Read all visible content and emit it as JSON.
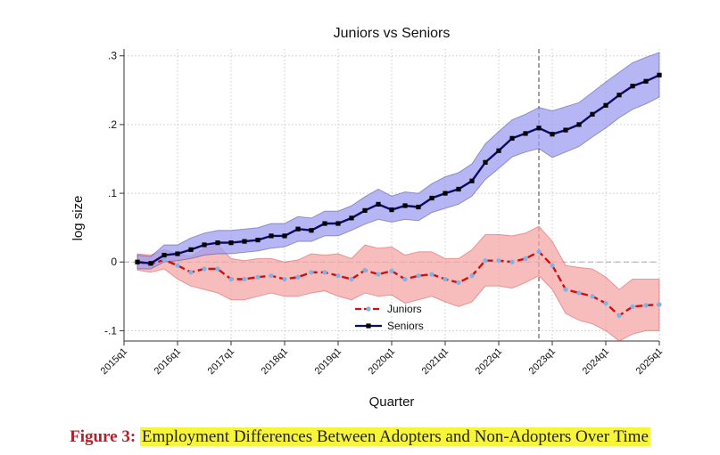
{
  "chart_data": {
    "type": "line",
    "title": "Juniors vs Seniors",
    "xlabel": "Quarter",
    "ylabel": "log size",
    "xlim": [
      "2015q1",
      "2025q1"
    ],
    "ylim": [
      -0.115,
      0.31
    ],
    "x_ticks": [
      "2015q1",
      "2016q1",
      "2017q1",
      "2018q1",
      "2019q1",
      "2020q1",
      "2021q1",
      "2022q1",
      "2023q1",
      "2024q1",
      "2025q1"
    ],
    "y_ticks": [
      {
        "value": 0.3,
        "label": ".3"
      },
      {
        "value": 0.2,
        "label": ".2"
      },
      {
        "value": 0.1,
        "label": ".1"
      },
      {
        "value": 0,
        "label": "0"
      },
      {
        "value": -0.1,
        "label": "-.1"
      }
    ],
    "grid": true,
    "vline": "2022q4",
    "legend_position": "bottom-center",
    "x": [
      "2015q2",
      "2015q3",
      "2015q4",
      "2016q1",
      "2016q2",
      "2016q3",
      "2016q4",
      "2017q1",
      "2017q2",
      "2017q3",
      "2017q4",
      "2018q1",
      "2018q2",
      "2018q3",
      "2018q4",
      "2019q1",
      "2019q2",
      "2019q3",
      "2019q4",
      "2020q1",
      "2020q2",
      "2020q3",
      "2020q4",
      "2021q1",
      "2021q2",
      "2021q3",
      "2021q4",
      "2022q1",
      "2022q2",
      "2022q3",
      "2022q4",
      "2023q1",
      "2023q2",
      "2023q3",
      "2023q4",
      "2024q1",
      "2024q2",
      "2024q3",
      "2024q4",
      "2025q1"
    ],
    "series": [
      {
        "name": "Juniors",
        "color": "#cc1111",
        "marker_color": "#7fb2e6",
        "band_color": "#f4a6a6",
        "values": [
          0.0,
          -0.003,
          0.003,
          -0.005,
          -0.015,
          -0.01,
          -0.01,
          -0.025,
          -0.025,
          -0.022,
          -0.02,
          -0.025,
          -0.022,
          -0.015,
          -0.015,
          -0.02,
          -0.025,
          -0.012,
          -0.018,
          -0.013,
          -0.025,
          -0.02,
          -0.018,
          -0.025,
          -0.03,
          -0.02,
          0.002,
          0.002,
          0.0,
          0.005,
          0.015,
          -0.005,
          -0.04,
          -0.045,
          -0.05,
          -0.06,
          -0.078,
          -0.065,
          -0.063,
          -0.062
        ],
        "lower": [
          -0.012,
          -0.015,
          -0.01,
          -0.025,
          -0.035,
          -0.04,
          -0.045,
          -0.055,
          -0.055,
          -0.05,
          -0.045,
          -0.05,
          -0.05,
          -0.045,
          -0.042,
          -0.05,
          -0.055,
          -0.045,
          -0.05,
          -0.048,
          -0.06,
          -0.055,
          -0.05,
          -0.058,
          -0.065,
          -0.058,
          -0.035,
          -0.035,
          -0.038,
          -0.03,
          -0.02,
          -0.04,
          -0.075,
          -0.085,
          -0.09,
          -0.1,
          -0.115,
          -0.105,
          -0.1,
          -0.1
        ],
        "upper": [
          0.012,
          0.01,
          0.018,
          0.012,
          0.008,
          0.02,
          0.025,
          0.005,
          0.002,
          0.005,
          0.005,
          0.0,
          0.003,
          0.012,
          0.01,
          0.012,
          0.005,
          0.025,
          0.02,
          0.022,
          0.01,
          0.015,
          0.015,
          0.005,
          0.005,
          0.018,
          0.04,
          0.04,
          0.038,
          0.042,
          0.052,
          0.03,
          -0.005,
          -0.008,
          -0.01,
          -0.022,
          -0.04,
          -0.025,
          -0.025,
          -0.025
        ]
      },
      {
        "name": "Seniors",
        "color": "#0b0b66",
        "marker_color": "#000000",
        "band_color": "#9d9df2",
        "values": [
          0.0,
          -0.002,
          0.01,
          0.012,
          0.018,
          0.025,
          0.028,
          0.028,
          0.03,
          0.032,
          0.038,
          0.038,
          0.048,
          0.046,
          0.056,
          0.056,
          0.064,
          0.075,
          0.084,
          0.076,
          0.082,
          0.08,
          0.093,
          0.1,
          0.106,
          0.118,
          0.145,
          0.162,
          0.18,
          0.187,
          0.195,
          0.186,
          0.192,
          0.2,
          0.215,
          0.228,
          0.243,
          0.256,
          0.263,
          0.272
        ],
        "lower": [
          -0.01,
          -0.01,
          0.0,
          0.002,
          0.005,
          0.01,
          0.012,
          0.012,
          0.014,
          0.016,
          0.02,
          0.022,
          0.03,
          0.03,
          0.038,
          0.038,
          0.046,
          0.055,
          0.062,
          0.058,
          0.062,
          0.06,
          0.072,
          0.078,
          0.084,
          0.096,
          0.12,
          0.136,
          0.153,
          0.16,
          0.165,
          0.152,
          0.16,
          0.168,
          0.182,
          0.195,
          0.21,
          0.222,
          0.23,
          0.24
        ],
        "upper": [
          0.01,
          0.008,
          0.025,
          0.025,
          0.035,
          0.042,
          0.046,
          0.046,
          0.048,
          0.05,
          0.056,
          0.056,
          0.066,
          0.064,
          0.074,
          0.074,
          0.082,
          0.095,
          0.106,
          0.096,
          0.102,
          0.1,
          0.114,
          0.124,
          0.13,
          0.143,
          0.172,
          0.19,
          0.207,
          0.215,
          0.225,
          0.22,
          0.226,
          0.232,
          0.247,
          0.262,
          0.276,
          0.29,
          0.298,
          0.305
        ]
      }
    ]
  },
  "caption": {
    "label": "Figure 3:",
    "text": "Employment Differences Between Adopters and Non-Adopters Over Time"
  }
}
